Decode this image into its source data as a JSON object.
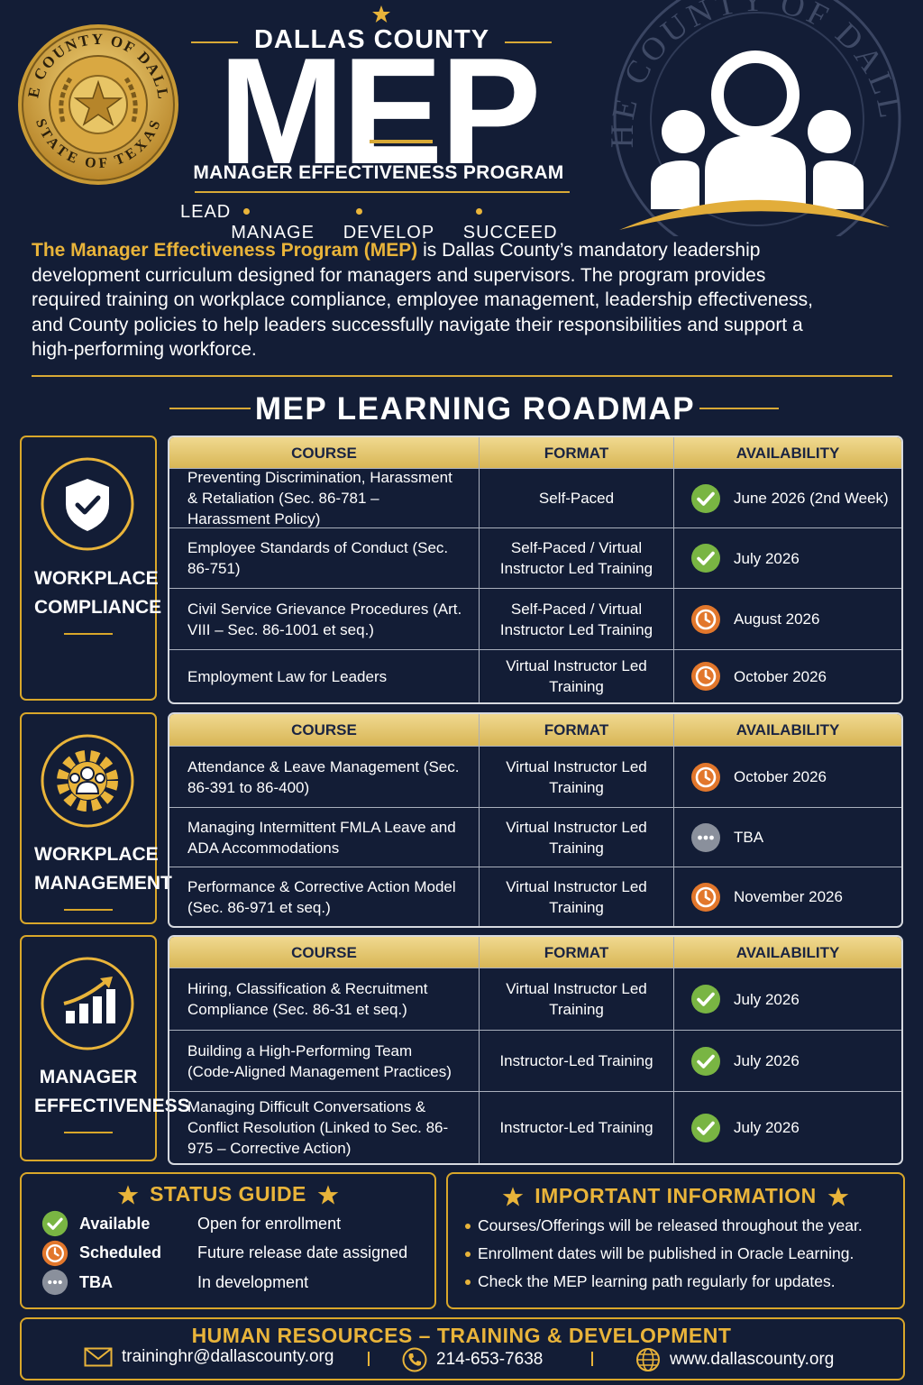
{
  "header": {
    "county": "DALLAS COUNTY",
    "title": "MEP",
    "subtitle": "MANAGER EFFECTIVENESS PROGRAM",
    "pillars": [
      "LEAD",
      "MANAGE",
      "DEVELOP",
      "SUCCEED"
    ],
    "seal": {
      "top": "THE COUNTY OF DALLAS",
      "bottom": "STATE OF TEXAS"
    }
  },
  "intro": {
    "lead": "The Manager Effectiveness Program (MEP)",
    "text": " is Dallas County’s mandatory leadership development curriculum designed for managers and supervisors. The program provides required training on workplace compliance, employee management, leadership effectiveness, and County policies to help leaders successfully navigate their responsibilities and support a high-performing workforce."
  },
  "roadmap": {
    "title": "MEP LEARNING ROADMAP",
    "columns": [
      "COURSE",
      "FORMAT",
      "AVAILABILITY"
    ],
    "sections": [
      {
        "name": "WORKPLACE COMPLIANCE",
        "rows": [
          {
            "course": "Preventing Discrimination, Harassment & Retaliation (Sec. 86-781 – Harassment Policy)",
            "format": "Self-Paced",
            "availability": "June 2026 (2nd Week)",
            "status": "Available"
          },
          {
            "course": "Employee Standards of Conduct (Sec. 86-751)",
            "format": "Self-Paced / Virtual Instructor Led Training",
            "availability": "July 2026",
            "status": "Available"
          },
          {
            "course": "Civil Service Grievance Procedures (Art. VIII – Sec. 86-1001 et seq.)",
            "format": "Self-Paced / Virtual Instructor Led Training",
            "availability": "August 2026",
            "status": "Scheduled"
          },
          {
            "course": "Employment Law for Leaders",
            "format": "Virtual Instructor Led Training",
            "availability": "October 2026",
            "status": "Scheduled"
          }
        ]
      },
      {
        "name": "WORKPLACE MANAGEMENT",
        "rows": [
          {
            "course": "Attendance & Leave Management (Sec. 86-391 to 86-400)",
            "format": "Virtual Instructor Led Training",
            "availability": "October 2026",
            "status": "Scheduled"
          },
          {
            "course": "Managing Intermittent FMLA Leave and ADA Accommodations",
            "format": "Virtual Instructor Led Training",
            "availability": "TBA",
            "status": "TBA"
          },
          {
            "course": "Performance & Corrective Action Model (Sec. 86-971 et seq.)",
            "format": "Virtual Instructor Led Training",
            "availability": "November 2026",
            "status": "Scheduled"
          }
        ]
      },
      {
        "name": "MANAGER EFFECTIVENESS",
        "rows": [
          {
            "course": "Hiring, Classification & Recruitment Compliance (Sec. 86-31 et seq.)",
            "format": "Virtual Instructor Led Training",
            "availability": "July 2026",
            "status": "Available"
          },
          {
            "course": "Building a High-Performing Team (Code-Aligned Management Practices)",
            "format": "Instructor-Led Training",
            "availability": "July 2026",
            "status": "Available"
          },
          {
            "course": "Managing Difficult Conversations & Conflict Resolution (Linked to Sec. 86-975 – Corrective Action)",
            "format": "Instructor-Led Training",
            "availability": "July 2026",
            "status": "Available"
          }
        ]
      }
    ]
  },
  "status_guide": {
    "title": "STATUS GUIDE",
    "items": [
      {
        "label": "Available",
        "description": "Open for enrollment"
      },
      {
        "label": "Scheduled",
        "description": "Future release date assigned"
      },
      {
        "label": "TBA",
        "description": "In development"
      }
    ]
  },
  "important": {
    "title": "IMPORTANT INFORMATION",
    "items": [
      "Courses/Offerings will be released throughout the year.",
      "Enrollment dates will be published in Oracle Learning.",
      "Check the MEP learning path regularly for updates."
    ]
  },
  "footer": {
    "title": "HUMAN RESOURCES – TRAINING & DEVELOPMENT",
    "email": "traininghr@dallascounty.org",
    "phone": "214-653-7638",
    "website": "www.dallascounty.org"
  }
}
